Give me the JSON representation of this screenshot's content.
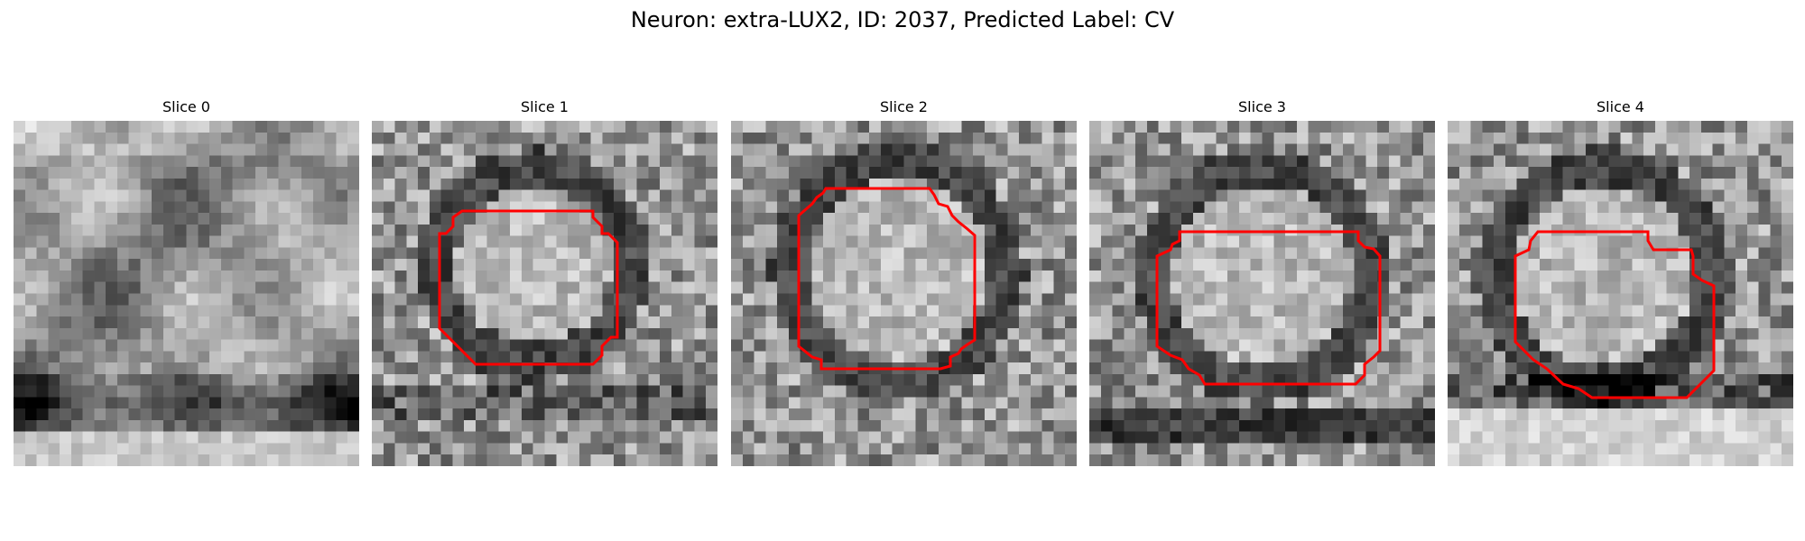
{
  "figure": {
    "title": "Neuron: extra-LUX2, ID: 2037, Predicted Label: CV"
  },
  "slices": [
    {
      "title": "Slice 0"
    },
    {
      "title": "Slice 1"
    },
    {
      "title": "Slice 2"
    },
    {
      "title": "Slice 3"
    },
    {
      "title": "Slice 4"
    }
  ],
  "colors": {
    "contour": "#ff0000",
    "background": "#ffffff"
  },
  "colormap": "gray"
}
